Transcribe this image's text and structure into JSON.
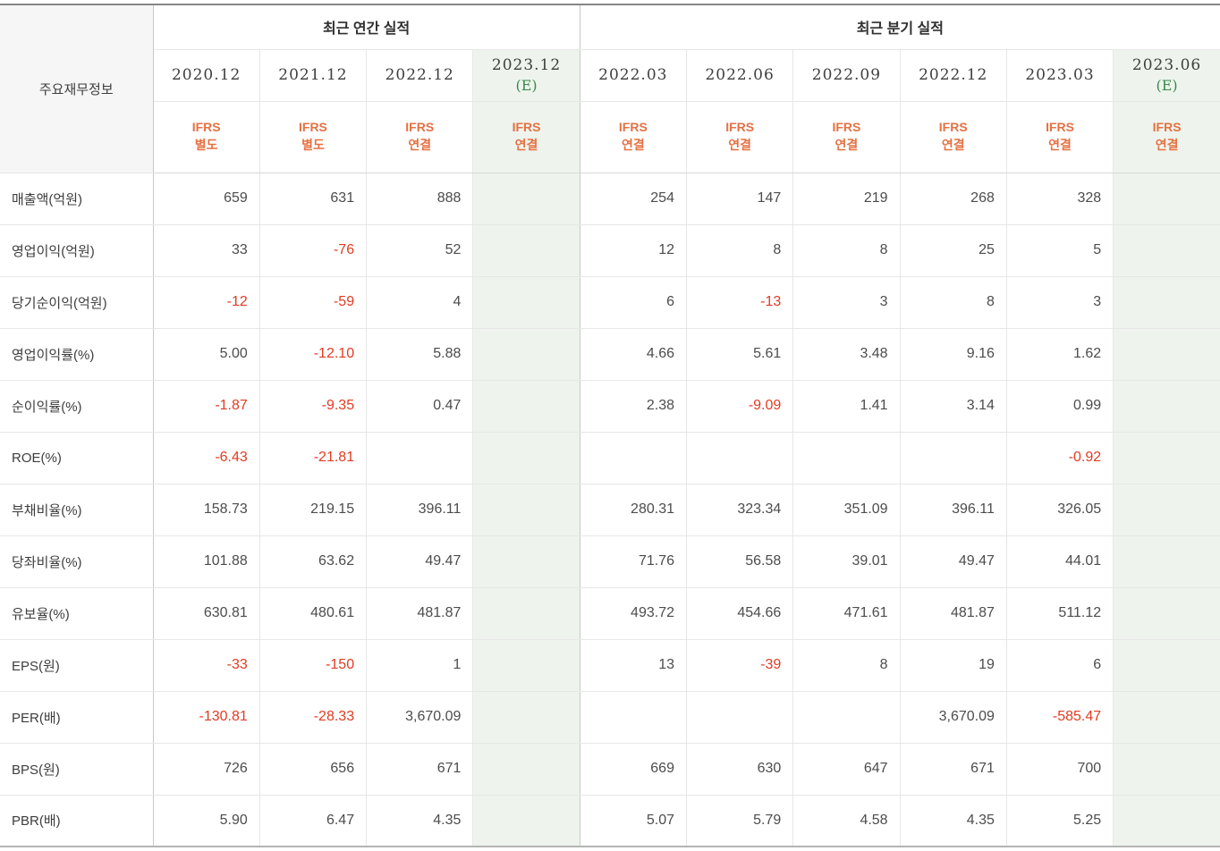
{
  "colors": {
    "ifrs_orange": "#e57142",
    "negative_red": "#e23b22",
    "estimate_green_text": "#3a8a4d",
    "estimate_column_bg": "#eef4ed",
    "corner_header_bg": "#f6f6f6"
  },
  "table": {
    "corner_label": "주요재무정보",
    "sections": [
      {
        "label": "최근 연간 실적",
        "col_count": 4
      },
      {
        "label": "최근 분기 실적",
        "col_count": 6
      }
    ],
    "columns": [
      {
        "period": "2020.12",
        "ifrs": "IFRS\n별도",
        "estimate": false,
        "section": 0
      },
      {
        "period": "2021.12",
        "ifrs": "IFRS\n별도",
        "estimate": false,
        "section": 0
      },
      {
        "period": "2022.12",
        "ifrs": "IFRS\n연결",
        "estimate": false,
        "section": 0
      },
      {
        "period": "2023.12",
        "estimate_mark": "(E)",
        "ifrs": "IFRS\n연결",
        "estimate": true,
        "section": 0
      },
      {
        "period": "2022.03",
        "ifrs": "IFRS\n연결",
        "estimate": false,
        "section": 1
      },
      {
        "period": "2022.06",
        "ifrs": "IFRS\n연결",
        "estimate": false,
        "section": 1
      },
      {
        "period": "2022.09",
        "ifrs": "IFRS\n연결",
        "estimate": false,
        "section": 1
      },
      {
        "period": "2022.12",
        "ifrs": "IFRS\n연결",
        "estimate": false,
        "section": 1
      },
      {
        "period": "2023.03",
        "ifrs": "IFRS\n연결",
        "estimate": false,
        "section": 1
      },
      {
        "period": "2023.06",
        "estimate_mark": "(E)",
        "ifrs": "IFRS\n연결",
        "estimate": true,
        "section": 1
      }
    ],
    "rows": [
      {
        "label": "매출액(억원)",
        "values": [
          "659",
          "631",
          "888",
          "",
          "254",
          "147",
          "219",
          "268",
          "328",
          ""
        ]
      },
      {
        "label": "영업이익(억원)",
        "values": [
          "33",
          "-76",
          "52",
          "",
          "12",
          "8",
          "8",
          "25",
          "5",
          ""
        ]
      },
      {
        "label": "당기순이익(억원)",
        "values": [
          "-12",
          "-59",
          "4",
          "",
          "6",
          "-13",
          "3",
          "8",
          "3",
          ""
        ]
      },
      {
        "label": "영업이익률(%)",
        "values": [
          "5.00",
          "-12.10",
          "5.88",
          "",
          "4.66",
          "5.61",
          "3.48",
          "9.16",
          "1.62",
          ""
        ]
      },
      {
        "label": "순이익률(%)",
        "values": [
          "-1.87",
          "-9.35",
          "0.47",
          "",
          "2.38",
          "-9.09",
          "1.41",
          "3.14",
          "0.99",
          ""
        ]
      },
      {
        "label": "ROE(%)",
        "values": [
          "-6.43",
          "-21.81",
          "",
          "",
          "",
          "",
          "",
          "",
          "-0.92",
          ""
        ]
      },
      {
        "label": "부채비율(%)",
        "values": [
          "158.73",
          "219.15",
          "396.11",
          "",
          "280.31",
          "323.34",
          "351.09",
          "396.11",
          "326.05",
          ""
        ]
      },
      {
        "label": "당좌비율(%)",
        "values": [
          "101.88",
          "63.62",
          "49.47",
          "",
          "71.76",
          "56.58",
          "39.01",
          "49.47",
          "44.01",
          ""
        ]
      },
      {
        "label": "유보율(%)",
        "values": [
          "630.81",
          "480.61",
          "481.87",
          "",
          "493.72",
          "454.66",
          "471.61",
          "481.87",
          "511.12",
          ""
        ]
      },
      {
        "label": "EPS(원)",
        "values": [
          "-33",
          "-150",
          "1",
          "",
          "13",
          "-39",
          "8",
          "19",
          "6",
          ""
        ]
      },
      {
        "label": "PER(배)",
        "values": [
          "-130.81",
          "-28.33",
          "3,670.09",
          "",
          "",
          "",
          "",
          "3,670.09",
          "-585.47",
          ""
        ]
      },
      {
        "label": "BPS(원)",
        "values": [
          "726",
          "656",
          "671",
          "",
          "669",
          "630",
          "647",
          "671",
          "700",
          ""
        ]
      },
      {
        "label": "PBR(배)",
        "values": [
          "5.90",
          "6.47",
          "4.35",
          "",
          "5.07",
          "5.79",
          "4.58",
          "4.35",
          "5.25",
          ""
        ]
      }
    ]
  }
}
